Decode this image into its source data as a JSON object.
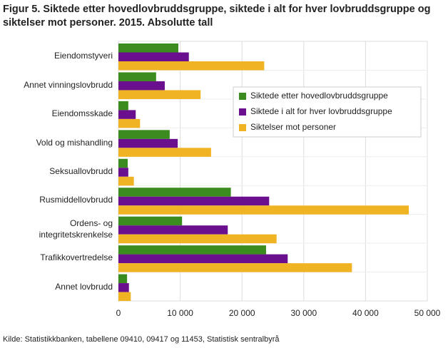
{
  "chart_data": {
    "type": "bar",
    "orientation": "horizontal",
    "title": "Figur 5. Siktede etter hovedlovbruddsgruppe, siktede i alt for hver lovbruddsgruppe og siktelser mot personer. 2015. Absolutte tall",
    "source": "Kilde: Statistikkbanken, tabellene 09410, 09417 og 11453, Statistisk sentralbyrå",
    "categories": [
      "Eiendomstyveri",
      "Annet vinningslovbrudd",
      "Eiendomsskade",
      "Vold og mishandling",
      "Seksuallovbrudd",
      "Rusmiddellovbrudd",
      "Ordens- og\nintegritetskrenkelse",
      "Trafikkovertredelse",
      "Annet lovbrudd"
    ],
    "series": [
      {
        "name": "Siktede etter hovedlovbruddsgruppe",
        "color": "#3a8c1e",
        "values": [
          9700,
          6100,
          1600,
          8300,
          1500,
          18200,
          10300,
          23900,
          1400
        ]
      },
      {
        "name": "Siktede i alt for hver lovbruddsgruppe",
        "color": "#6a0f8e",
        "values": [
          11400,
          7500,
          2800,
          9600,
          1600,
          24400,
          17700,
          27400,
          1700
        ]
      },
      {
        "name": "Siktelser mot personer",
        "color": "#f0b323",
        "values": [
          23600,
          13300,
          3500,
          15000,
          2500,
          47000,
          25600,
          37800,
          2000
        ]
      }
    ],
    "xlim": [
      0,
      50000
    ],
    "xticks": [
      0,
      {
        "value": 10000,
        "label": "10 000"
      },
      {
        "value": 20000,
        "label": "20 000"
      },
      {
        "value": 30000,
        "label": "30 000"
      },
      {
        "value": 40000,
        "label": "40 000"
      },
      {
        "value": 50000,
        "label": "50 000"
      }
    ],
    "grid": true
  }
}
